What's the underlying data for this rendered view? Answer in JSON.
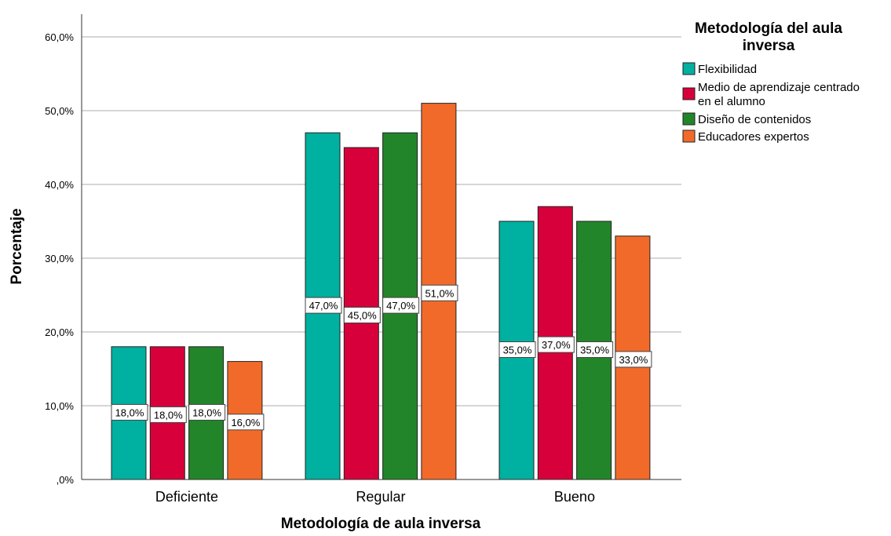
{
  "chart_data": {
    "type": "bar",
    "title": "",
    "xlabel": "Metodología de aula inversa",
    "ylabel": "Porcentaje",
    "categories": [
      "Deficiente",
      "Regular",
      "Bueno"
    ],
    "ylim": [
      0,
      63
    ],
    "yticks": [
      0,
      10,
      20,
      30,
      40,
      50,
      60
    ],
    "ytick_labels": [
      ",0%",
      "10,0%",
      "20,0%",
      "30,0%",
      "40,0%",
      "50,0%",
      "60,0%"
    ],
    "grid": true,
    "legend": {
      "title_lines": [
        "Metodología del aula",
        "inversa"
      ],
      "position": "top-right"
    },
    "series": [
      {
        "name": "Flexibilidad",
        "name_lines": [
          "Flexibilidad"
        ],
        "color": "#00b0a0",
        "values": [
          18,
          47,
          35
        ],
        "labels": [
          "18,0%",
          "47,0%",
          "35,0%"
        ]
      },
      {
        "name": "Medio de aprendizaje centrado en el alumno",
        "name_lines": [
          "Medio de aprendizaje centrado",
          "en el alumno"
        ],
        "color": "#d8003a",
        "values": [
          18,
          45,
          37
        ],
        "labels": [
          "18,0%",
          "45,0%",
          "37,0%"
        ]
      },
      {
        "name": "Diseño de contenidos",
        "name_lines": [
          "Diseño de contenidos"
        ],
        "color": "#23852a",
        "values": [
          18,
          47,
          35
        ],
        "labels": [
          "18,0%",
          "47,0%",
          "35,0%"
        ]
      },
      {
        "name": "Educadores expertos",
        "name_lines": [
          "Educadores expertos"
        ],
        "color": "#f26a2a",
        "values": [
          16,
          51,
          33
        ],
        "labels": [
          "16,0%",
          "51,0%",
          "33,0%"
        ]
      }
    ]
  }
}
